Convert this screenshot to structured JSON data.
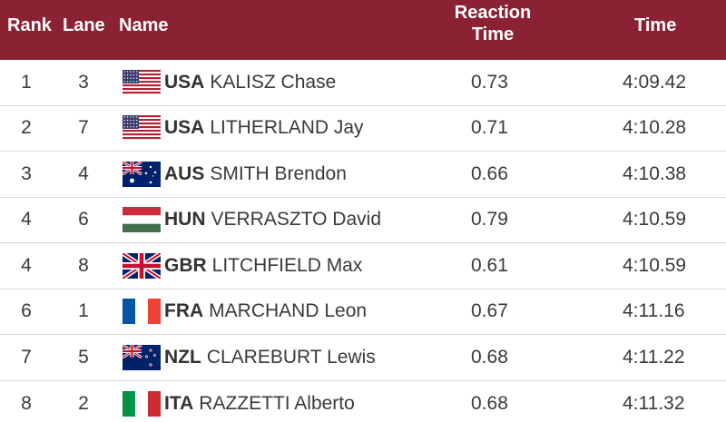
{
  "header": {
    "rank": "Rank",
    "lane": "Lane",
    "name": "Name",
    "reaction_line1": "Reaction",
    "reaction_line2": "Time",
    "time": "Time"
  },
  "colors": {
    "header_bg": "#8a2233",
    "header_text": "#ffffff",
    "row_divider": "#d7d7d7"
  },
  "rows": [
    {
      "rank": "1",
      "lane": "3",
      "flag": "usa-flag-icon",
      "noc": "USA",
      "athlete": "KALISZ Chase",
      "reaction": "0.73",
      "time": "4:09.42"
    },
    {
      "rank": "2",
      "lane": "7",
      "flag": "usa-flag-icon",
      "noc": "USA",
      "athlete": "LITHERLAND Jay",
      "reaction": "0.71",
      "time": "4:10.28"
    },
    {
      "rank": "3",
      "lane": "4",
      "flag": "aus-flag-icon",
      "noc": "AUS",
      "athlete": "SMITH Brendon",
      "reaction": "0.66",
      "time": "4:10.38"
    },
    {
      "rank": "4",
      "lane": "6",
      "flag": "hun-flag-icon",
      "noc": "HUN",
      "athlete": "VERRASZTO David",
      "reaction": "0.79",
      "time": "4:10.59"
    },
    {
      "rank": "4",
      "lane": "8",
      "flag": "gbr-flag-icon",
      "noc": "GBR",
      "athlete": "LITCHFIELD Max",
      "reaction": "0.61",
      "time": "4:10.59"
    },
    {
      "rank": "6",
      "lane": "1",
      "flag": "fra-flag-icon",
      "noc": "FRA",
      "athlete": "MARCHAND Leon",
      "reaction": "0.67",
      "time": "4:11.16"
    },
    {
      "rank": "7",
      "lane": "5",
      "flag": "nzl-flag-icon",
      "noc": "NZL",
      "athlete": "CLAREBURT Lewis",
      "reaction": "0.68",
      "time": "4:11.22"
    },
    {
      "rank": "8",
      "lane": "2",
      "flag": "ita-flag-icon",
      "noc": "ITA",
      "athlete": "RAZZETTI Alberto",
      "reaction": "0.68",
      "time": "4:11.32"
    }
  ]
}
